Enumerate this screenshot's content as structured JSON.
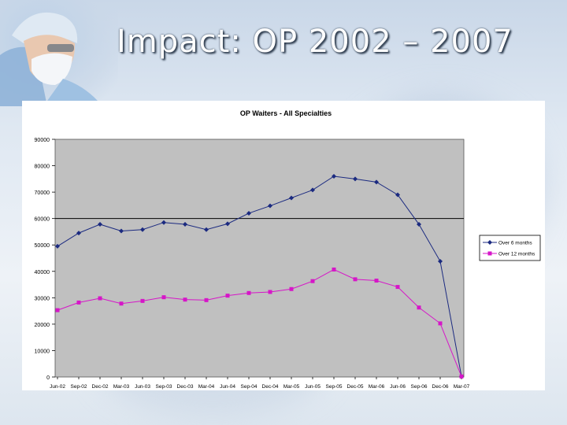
{
  "slide": {
    "title": "Impact: OP 2002 – 2007"
  },
  "chart_data": {
    "type": "line",
    "title": "OP Waiters - All Specialties",
    "categories": [
      "Jun-02",
      "Sep-02",
      "Dec-02",
      "Mar-03",
      "Jun-03",
      "Sep-03",
      "Dec-03",
      "Mar-04",
      "Jun-04",
      "Sep-04",
      "Dec-04",
      "Mar-05",
      "Jun-05",
      "Sep-05",
      "Dec-05",
      "Mar-06",
      "Jun-06",
      "Sep-06",
      "Dec-06",
      "Mar-07"
    ],
    "ylim": [
      0,
      90000
    ],
    "yticks": [
      0,
      10000,
      20000,
      30000,
      40000,
      50000,
      60000,
      70000,
      80000,
      90000
    ],
    "ytick_labels": [
      "0",
      "10000",
      "20000",
      "30000",
      "40000",
      "50000",
      "60000",
      "70000",
      "80000",
      "90000"
    ],
    "reference_line": 60000,
    "legend_position": "right",
    "series": [
      {
        "name": "Over 6 months",
        "color": "#1b2a80",
        "marker": "diamond",
        "values": [
          49500,
          54500,
          57800,
          55300,
          55800,
          58500,
          57800,
          55800,
          58000,
          62000,
          64800,
          67800,
          70800,
          76000,
          75000,
          73800,
          69000,
          57800,
          43800,
          200
        ]
      },
      {
        "name": "Over 12 months",
        "color": "#d616c8",
        "marker": "square",
        "values": [
          25300,
          28200,
          29800,
          27800,
          28800,
          30200,
          29300,
          29100,
          30800,
          31800,
          32200,
          33300,
          36300,
          40700,
          37000,
          36500,
          34100,
          26300,
          20300,
          200
        ]
      }
    ]
  }
}
